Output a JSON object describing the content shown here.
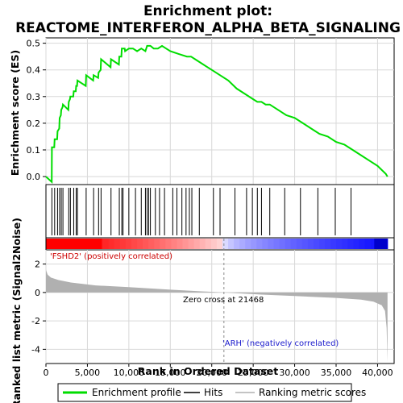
{
  "chart_data": {
    "type": "line",
    "title_line1": "Enrichment plot:",
    "title_line2": "REACTOME_INTERFERON_ALPHA_BETA_SIGNALING",
    "colors": {
      "enrichment": "#00dd00",
      "hits": "#000000",
      "metric_fill": "#b0b0b0",
      "zero_line": "#888888",
      "positive": "#ff0000",
      "negative": "#0000ff"
    },
    "top_panel": {
      "ylabel": "Enrichment score (ES)",
      "ylim": [
        -0.03,
        0.52
      ],
      "yticks": [
        "0.0",
        "0.1",
        "0.2",
        "0.3",
        "0.4",
        "0.5"
      ],
      "ytick_values": [
        0.0,
        0.1,
        0.2,
        0.3,
        0.4,
        0.5
      ],
      "series_name": "Enrichment profile",
      "points": [
        [
          0,
          0.0
        ],
        [
          700,
          -0.02
        ],
        [
          720,
          0.11
        ],
        [
          1000,
          0.11
        ],
        [
          1050,
          0.14
        ],
        [
          1350,
          0.14
        ],
        [
          1400,
          0.17
        ],
        [
          1600,
          0.18
        ],
        [
          1650,
          0.22
        ],
        [
          1800,
          0.23
        ],
        [
          1850,
          0.25
        ],
        [
          2000,
          0.26
        ],
        [
          2050,
          0.27
        ],
        [
          2700,
          0.25
        ],
        [
          2750,
          0.28
        ],
        [
          2900,
          0.29
        ],
        [
          2950,
          0.3
        ],
        [
          3300,
          0.3
        ],
        [
          3350,
          0.32
        ],
        [
          3600,
          0.32
        ],
        [
          3650,
          0.34
        ],
        [
          3750,
          0.34
        ],
        [
          3800,
          0.36
        ],
        [
          4800,
          0.34
        ],
        [
          4850,
          0.38
        ],
        [
          5700,
          0.36
        ],
        [
          5750,
          0.38
        ],
        [
          6300,
          0.37
        ],
        [
          6350,
          0.39
        ],
        [
          6600,
          0.4
        ],
        [
          6650,
          0.44
        ],
        [
          7800,
          0.41
        ],
        [
          7850,
          0.44
        ],
        [
          8800,
          0.42
        ],
        [
          8850,
          0.45
        ],
        [
          9100,
          0.45
        ],
        [
          9150,
          0.48
        ],
        [
          9500,
          0.48
        ],
        [
          9550,
          0.47
        ],
        [
          10000,
          0.48
        ],
        [
          10500,
          0.48
        ],
        [
          11000,
          0.47
        ],
        [
          11500,
          0.48
        ],
        [
          12000,
          0.47
        ],
        [
          12200,
          0.49
        ],
        [
          12600,
          0.49
        ],
        [
          13000,
          0.48
        ],
        [
          13500,
          0.48
        ],
        [
          14000,
          0.49
        ],
        [
          14500,
          0.48
        ],
        [
          15000,
          0.47
        ],
        [
          16000,
          0.46
        ],
        [
          17000,
          0.45
        ],
        [
          17500,
          0.45
        ],
        [
          18000,
          0.44
        ],
        [
          19000,
          0.42
        ],
        [
          20000,
          0.4
        ],
        [
          21000,
          0.38
        ],
        [
          22000,
          0.36
        ],
        [
          23000,
          0.33
        ],
        [
          24000,
          0.31
        ],
        [
          25000,
          0.29
        ],
        [
          25500,
          0.28
        ],
        [
          26000,
          0.28
        ],
        [
          26500,
          0.27
        ],
        [
          27000,
          0.27
        ],
        [
          28000,
          0.25
        ],
        [
          29000,
          0.23
        ],
        [
          30000,
          0.22
        ],
        [
          31000,
          0.2
        ],
        [
          32000,
          0.18
        ],
        [
          33000,
          0.16
        ],
        [
          34000,
          0.15
        ],
        [
          35000,
          0.13
        ],
        [
          36000,
          0.12
        ],
        [
          37000,
          0.1
        ],
        [
          38000,
          0.08
        ],
        [
          39000,
          0.06
        ],
        [
          40000,
          0.04
        ],
        [
          41000,
          0.01
        ],
        [
          41200,
          0.0
        ]
      ]
    },
    "hits_panel": {
      "series_name": "Hits",
      "hit_ranks": [
        720,
        1050,
        1400,
        1650,
        1850,
        2050,
        2750,
        2950,
        3350,
        3650,
        3800,
        4850,
        5750,
        6350,
        6650,
        7850,
        8850,
        9150,
        9300,
        10000,
        10800,
        11500,
        12000,
        12200,
        12400,
        12600,
        13200,
        13700,
        14300,
        15300,
        15800,
        16400,
        16900,
        17300,
        17600,
        18500,
        20200,
        21000,
        22800,
        24200,
        24900,
        25500,
        26000,
        27000,
        28800,
        30700,
        32800,
        34900,
        36800
      ]
    },
    "bottom_panel": {
      "ylabel": "Ranked list metric (Signal2Noise)",
      "ylim": [
        -5,
        3
      ],
      "yticks": [
        "-4",
        "-2",
        "0",
        "2"
      ],
      "ytick_values": [
        -4,
        -2,
        0,
        2
      ],
      "series_name": "Ranking metric scores",
      "metric_profile": [
        [
          0,
          1.6
        ],
        [
          200,
          1.25
        ],
        [
          600,
          1.05
        ],
        [
          1500,
          0.88
        ],
        [
          3000,
          0.7
        ],
        [
          6000,
          0.5
        ],
        [
          10000,
          0.38
        ],
        [
          15000,
          0.2
        ],
        [
          21468,
          0.0
        ],
        [
          26000,
          -0.15
        ],
        [
          30000,
          -0.25
        ],
        [
          35000,
          -0.38
        ],
        [
          38000,
          -0.5
        ],
        [
          39500,
          -0.65
        ],
        [
          40500,
          -0.9
        ],
        [
          40900,
          -1.3
        ],
        [
          41100,
          -2.5
        ],
        [
          41200,
          -4.9
        ]
      ],
      "positive_label": "'FSHD2' (positively correlated)",
      "negative_label": "'ARH' (negatively correlated)",
      "zero_cross_label": "Zero cross at 21468",
      "zero_cross": 21468
    },
    "xlabel": "Rank in Ordered Dataset",
    "x_max": 41200,
    "xlim": [
      0,
      42000
    ],
    "xticks": [
      "0",
      "5,000",
      "10,000",
      "15,000",
      "20,000",
      "25,000",
      "30,000",
      "35,000",
      "40,000"
    ],
    "xtick_values": [
      0,
      5000,
      10000,
      15000,
      20000,
      25000,
      30000,
      35000,
      40000
    ],
    "legend": [
      "Enrichment profile",
      "Hits",
      "Ranking metric scores"
    ]
  }
}
